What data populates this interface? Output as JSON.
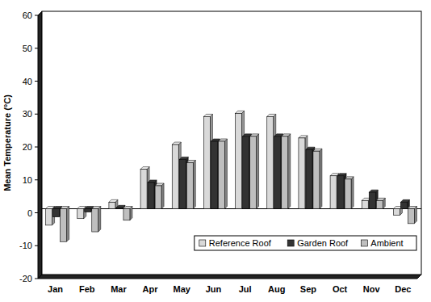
{
  "chart_data": {
    "type": "bar",
    "y_label": "Mean Temperature (°C)",
    "categories": [
      "Jan",
      "Feb",
      "Mar",
      "Apr",
      "May",
      "Jun",
      "Jul",
      "Aug",
      "Sep",
      "Oct",
      "Nov",
      "Dec"
    ],
    "series": [
      {
        "name": "Reference Roof",
        "color": "#d9d9d9",
        "values": [
          -5,
          -3,
          2,
          12,
          19.5,
          28,
          29,
          28,
          21.5,
          10,
          2.5,
          -2
        ]
      },
      {
        "name": "Garden Roof",
        "color": "#333333",
        "values": [
          -2.5,
          -1,
          0.3,
          8,
          15,
          20.5,
          22,
          22,
          18,
          10,
          5,
          2
        ]
      },
      {
        "name": "Ambient",
        "color": "#bfbfbf",
        "values": [
          -10,
          -7,
          -3.5,
          7,
          14,
          20.5,
          22,
          22,
          17.5,
          9,
          2.5,
          -4.5
        ]
      }
    ],
    "ylim": [
      -20,
      60
    ],
    "yticks": [
      -20,
      -10,
      0,
      10,
      20,
      30,
      40,
      50,
      60
    ],
    "grid": false,
    "legend": "lower right"
  }
}
